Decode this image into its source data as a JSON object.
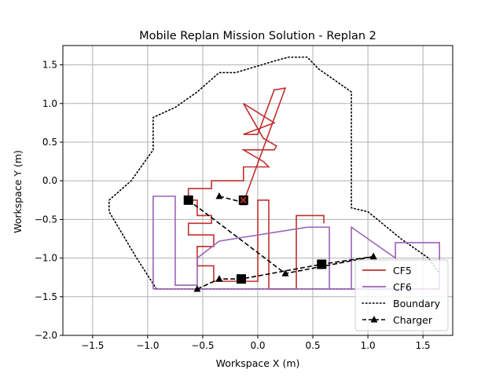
{
  "chart_data": {
    "type": "line",
    "title": "Mobile Replan Mission Solution - Replan 2",
    "xlabel": "Workspace X (m)",
    "ylabel": "Workspace Y (m)",
    "xlim": [
      -1.77,
      1.77
    ],
    "ylim": [
      -2.0,
      1.75
    ],
    "xticks": [
      -1.5,
      -1.0,
      -0.5,
      0.0,
      0.5,
      1.0,
      1.5
    ],
    "xtick_labels": [
      "−1.5",
      "−1.0",
      "−0.5",
      "0.0",
      "0.5",
      "1.0",
      "1.5"
    ],
    "yticks": [
      -2.0,
      -1.5,
      -1.0,
      -0.5,
      0.0,
      0.5,
      1.0,
      1.5
    ],
    "ytick_labels": [
      "−2.0",
      "−1.5",
      "−1.0",
      "−0.5",
      "0.0",
      "0.5",
      "1.0",
      "1.5"
    ],
    "grid": true,
    "legend_position": "lower-right",
    "legend": [
      {
        "label": "CF5",
        "kind": "cf5"
      },
      {
        "label": "CF6",
        "kind": "cf6"
      },
      {
        "label": "Boundary",
        "kind": "boundary"
      },
      {
        "label": "Charger",
        "kind": "charger"
      }
    ],
    "colors": {
      "cf5": "#c03030",
      "cf6": "#9a62b8",
      "boundary": "#000000",
      "charger": "#000000",
      "grid": "#b0b0b0"
    },
    "series": [
      {
        "name": "CF5",
        "style": "solid",
        "x": [
          -0.13,
          0.25,
          0.17,
          0.15,
          0.0,
          -0.13,
          0.15,
          -0.13,
          0.05,
          0.17,
          0.15,
          0.0,
          -0.13,
          0.05,
          0.1,
          -0.13,
          -0.13,
          -0.42,
          -0.42,
          -0.63,
          -0.63,
          -0.55,
          -0.55,
          -0.42,
          -0.42,
          -0.63,
          -0.63,
          -0.4,
          -0.4,
          -0.55,
          -0.55,
          -0.4,
          -0.4,
          0.0,
          0.0,
          0.1,
          0.1,
          0.35,
          0.35,
          0.6,
          0.6
        ],
        "y": [
          -0.28,
          1.2,
          1.18,
          1.18,
          0.6,
          0.6,
          0.75,
          1.0,
          0.55,
          0.45,
          0.4,
          0.4,
          0.4,
          0.25,
          0.18,
          0.18,
          0.0,
          0.0,
          -0.1,
          -0.1,
          -0.25,
          -0.25,
          -0.45,
          -0.45,
          -0.55,
          -0.55,
          -0.7,
          -0.7,
          -0.85,
          -0.85,
          -1.1,
          -1.1,
          -1.3,
          -1.3,
          -0.25,
          -0.25,
          -1.4,
          -1.4,
          -0.45,
          -0.45,
          -0.55
        ]
      },
      {
        "name": "CF6",
        "style": "solid",
        "x": [
          -0.95,
          -0.95,
          -0.75,
          -0.75,
          -0.55,
          -0.55,
          -0.35,
          0.45,
          0.65,
          0.65,
          0.85,
          0.85,
          1.25,
          1.25,
          1.65,
          1.65,
          -0.95
        ],
        "y": [
          -1.4,
          -0.2,
          -0.2,
          -1.35,
          -1.35,
          -1.0,
          -0.78,
          -0.6,
          -0.6,
          -1.4,
          -1.4,
          -0.6,
          -1.0,
          -0.8,
          -0.8,
          -1.4,
          -1.4
        ]
      },
      {
        "name": "Boundary",
        "style": "dotted",
        "x": [
          -0.92,
          -1.1,
          -1.35,
          -1.35,
          -1.15,
          -0.95,
          -0.95,
          -0.75,
          -0.55,
          -0.35,
          -0.2,
          0.15,
          0.28,
          0.45,
          0.55,
          0.85,
          0.85,
          1.0,
          1.3,
          1.55,
          1.65,
          1.65,
          -0.92
        ],
        "y": [
          -1.4,
          -1.0,
          -0.4,
          -0.25,
          0.0,
          0.4,
          0.82,
          0.95,
          1.15,
          1.4,
          1.4,
          1.55,
          1.6,
          1.6,
          1.45,
          1.15,
          -0.35,
          -0.4,
          -0.75,
          -1.0,
          -1.2,
          -1.4,
          -1.4
        ]
      },
      {
        "name": "Charger",
        "style": "dashed",
        "marker": "triangle",
        "x": [
          -0.63,
          0.25,
          1.05
        ],
        "y": [
          -0.25,
          -1.2,
          -0.98
        ]
      },
      {
        "name": "Charger",
        "style": "dashed",
        "marker": "triangle",
        "x": [
          -0.55,
          -0.35,
          -0.15,
          0.58,
          1.05
        ],
        "y": [
          -1.4,
          -1.27,
          -1.27,
          -1.08,
          -0.98
        ]
      },
      {
        "name": "Charger",
        "style": "dashed",
        "marker": "triangle",
        "x": [
          -0.35,
          -0.13
        ],
        "y": [
          -0.2,
          -0.28
        ]
      }
    ],
    "squares": [
      {
        "x": -0.63,
        "y": -0.25
      },
      {
        "x": -0.13,
        "y": -0.25
      },
      {
        "x": -0.15,
        "y": -1.27
      },
      {
        "x": 0.58,
        "y": -1.08
      }
    ],
    "x_marker": {
      "x": -0.13,
      "y": -0.25
    }
  }
}
